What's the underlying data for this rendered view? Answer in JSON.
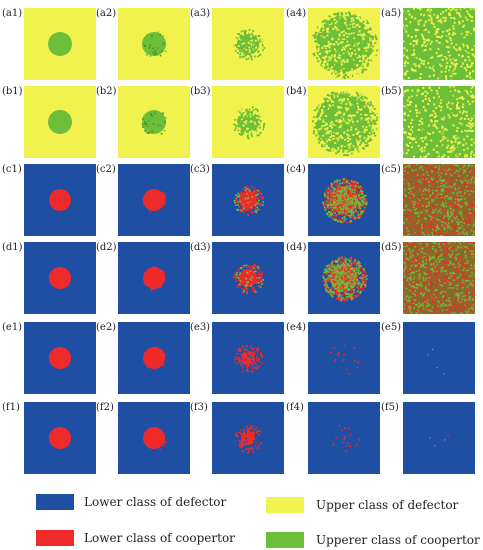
{
  "colors": {
    "lower_defector": "#1f4fa3",
    "lower_cooperator": "#ee2a2a",
    "upper_defector": "#f2f24e",
    "upper_cooperator": "#6dbf3a"
  },
  "rows": [
    {
      "id": "a",
      "labels": [
        "(a1)",
        "(a2)",
        "(a3)",
        "(a4)",
        "(a5)"
      ],
      "scheme": "upper"
    },
    {
      "id": "b",
      "labels": [
        "(b1)",
        "(b2)",
        "(b3)",
        "(b4)",
        "(b5)"
      ],
      "scheme": "upper"
    },
    {
      "id": "c",
      "labels": [
        "(c1)",
        "(c2)",
        "(c3)",
        "(c4)",
        "(c5)"
      ],
      "scheme": "lower-mixed"
    },
    {
      "id": "d",
      "labels": [
        "(d1)",
        "(d2)",
        "(d3)",
        "(d4)",
        "(d5)"
      ],
      "scheme": "lower-mixed"
    },
    {
      "id": "e",
      "labels": [
        "(e1)",
        "(e2)",
        "(e3)",
        "(e4)",
        "(e5)"
      ],
      "scheme": "lower-decay"
    },
    {
      "id": "f",
      "labels": [
        "(f1)",
        "(f2)",
        "(f3)",
        "(f4)",
        "(f5)"
      ],
      "scheme": "lower-decay"
    }
  ],
  "legend": {
    "lower_defector": "Lower class of defector",
    "upper_defector": "Upper class of defector",
    "lower_cooperator": "Lower class of coopertor",
    "upper_cooperator": "Upperer class of coopertor"
  }
}
